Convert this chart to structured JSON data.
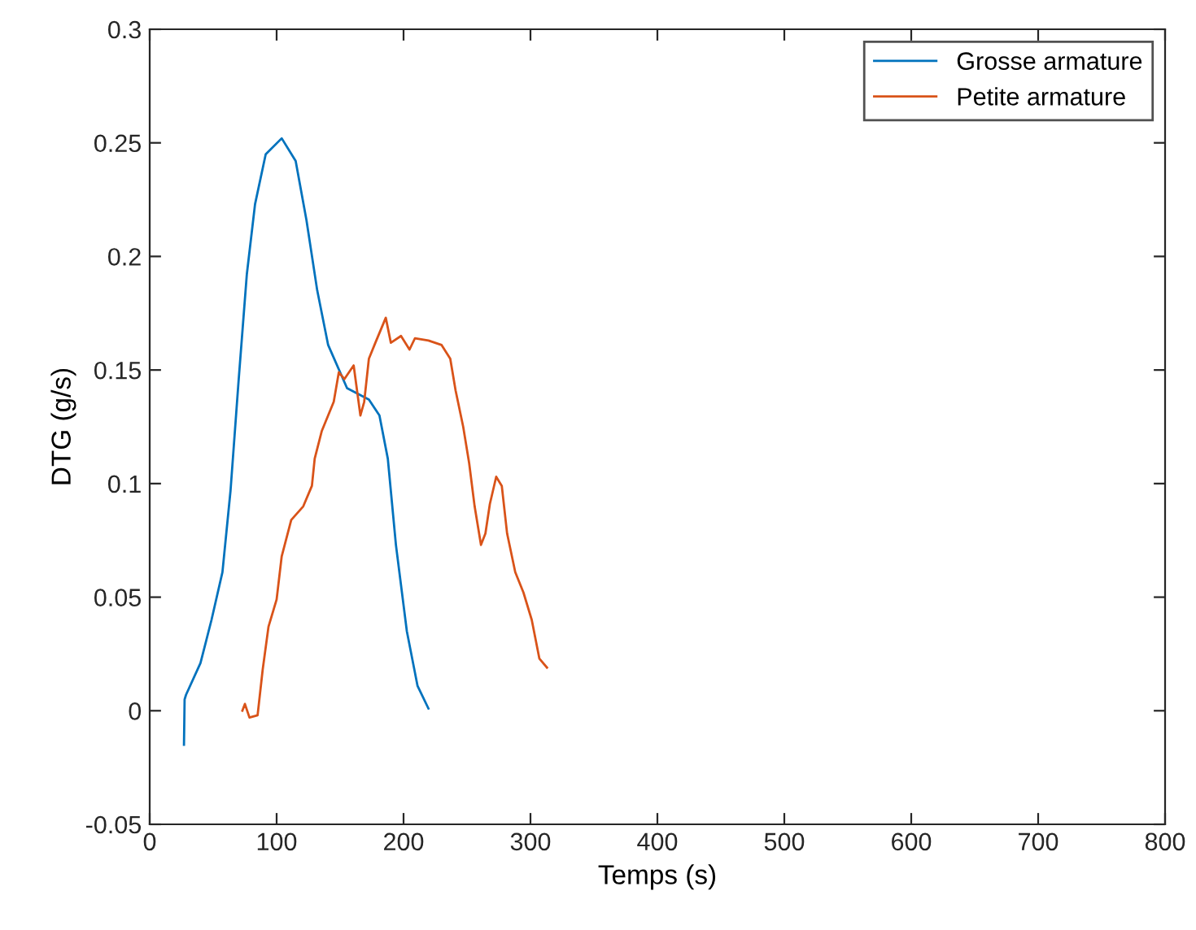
{
  "chart_data": {
    "type": "line",
    "xlabel": "Temps (s)",
    "ylabel": "DTG (g/s)",
    "xlim": [
      0,
      800
    ],
    "ylim": [
      -0.05,
      0.3
    ],
    "xticks": [
      0,
      100,
      200,
      300,
      400,
      500,
      600,
      700,
      800
    ],
    "yticks": [
      -0.05,
      0,
      0.05,
      0.1,
      0.15,
      0.2,
      0.25,
      0.3
    ],
    "legend": "top right",
    "grid": false,
    "series": [
      {
        "name": "Grosse armature",
        "color": "#0072bd",
        "x": [
          27,
          27.5,
          28.6,
          40,
          48.7,
          57.3,
          63.7,
          70,
          76.5,
          83,
          91.4,
          104,
          115,
          123.5,
          132,
          140.6,
          155.5,
          172.7,
          181,
          187.6,
          194,
          202.6,
          211,
          219.6
        ],
        "values": [
          -0.015,
          0.005,
          0.007,
          0.021,
          0.04,
          0.061,
          0.097,
          0.145,
          0.192,
          0.223,
          0.245,
          0.252,
          0.242,
          0.216,
          0.185,
          0.161,
          0.142,
          0.137,
          0.13,
          0.111,
          0.073,
          0.035,
          0.011,
          0.001
        ]
      },
      {
        "name": "Petite armature",
        "color": "#d95319",
        "x": [
          73,
          75,
          78.6,
          85,
          89,
          93.6,
          100,
          104,
          111.5,
          121,
          127.8,
          130,
          135.5,
          140.6,
          145,
          149,
          153.4,
          160.7,
          166,
          169,
          172.7,
          177.8,
          186,
          190,
          198,
          204.7,
          209,
          219.6,
          230,
          236.8,
          241,
          247,
          251.7,
          256,
          261,
          264.5,
          268,
          273,
          277.4,
          281.6,
          288,
          294.5,
          301,
          307,
          313
        ],
        "values": [
          0.0,
          0.003,
          -0.003,
          -0.002,
          0.018,
          0.037,
          0.049,
          0.068,
          0.084,
          0.09,
          0.099,
          0.111,
          0.123,
          0.13,
          0.136,
          0.149,
          0.146,
          0.152,
          0.13,
          0.136,
          0.155,
          0.162,
          0.173,
          0.162,
          0.165,
          0.159,
          0.164,
          0.163,
          0.161,
          0.155,
          0.141,
          0.125,
          0.109,
          0.09,
          0.073,
          0.078,
          0.091,
          0.103,
          0.099,
          0.078,
          0.061,
          0.052,
          0.04,
          0.023,
          0.019
        ]
      }
    ]
  }
}
